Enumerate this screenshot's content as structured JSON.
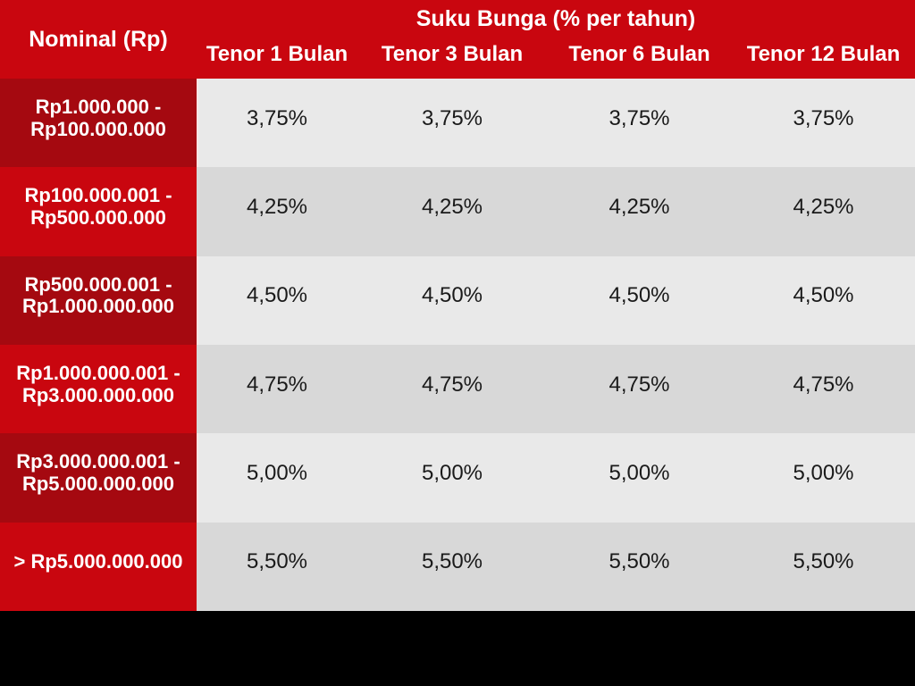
{
  "chart_data": {
    "type": "table",
    "group_header": "Suku Bunga (% per tahun)",
    "row_header": "Nominal (Rp)",
    "columns": [
      "Tenor 1 Bulan",
      "Tenor 3 Bulan",
      "Tenor 6 Bulan",
      "Tenor 12 Bulan"
    ],
    "rows": [
      {
        "label": "Rp1.000.000 - Rp100.000.000",
        "values": [
          "3,75%",
          "3,75%",
          "3,75%",
          "3,75%"
        ]
      },
      {
        "label": "Rp100.000.001 - Rp500.000.000",
        "values": [
          "4,25%",
          "4,25%",
          "4,25%",
          "4,25%"
        ]
      },
      {
        "label": "Rp500.000.001 - Rp1.000.000.000",
        "values": [
          "4,50%",
          "4,50%",
          "4,50%",
          "4,50%"
        ]
      },
      {
        "label": "Rp1.000.000.001 - Rp3.000.000.000",
        "values": [
          "4,75%",
          "4,75%",
          "4,75%",
          "4,75%"
        ]
      },
      {
        "label": "Rp3.000.000.001 - Rp5.000.000.000",
        "values": [
          "5,00%",
          "5,00%",
          "5,00%",
          "5,00%"
        ]
      },
      {
        "label": "> Rp5.000.000.000",
        "values": [
          "5,50%",
          "5,50%",
          "5,50%",
          "5,50%"
        ]
      }
    ]
  },
  "colors": {
    "header-red": "#c9060f",
    "dark-red": "#a50910",
    "row-light": "#e9e9e9",
    "row-dark": "#d8d8d8",
    "band-black": "#000000",
    "value-text": "#1a1a1a",
    "header-text": "#ffffff"
  }
}
